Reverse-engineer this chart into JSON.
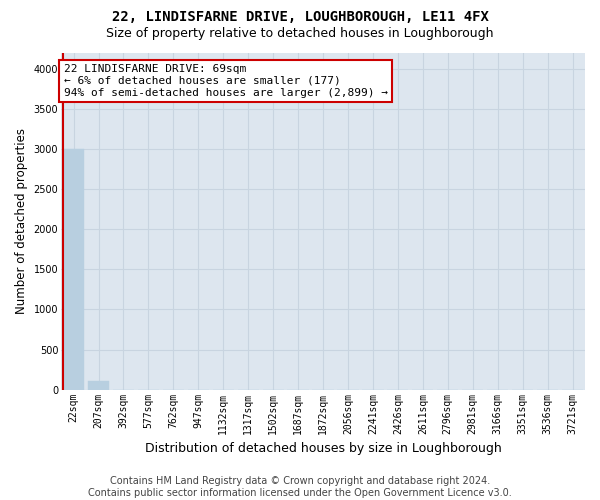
{
  "title": "22, LINDISFARNE DRIVE, LOUGHBOROUGH, LE11 4FX",
  "subtitle": "Size of property relative to detached houses in Loughborough",
  "xlabel": "Distribution of detached houses by size in Loughborough",
  "ylabel": "Number of detached properties",
  "footer_line1": "Contains HM Land Registry data © Crown copyright and database right 2024.",
  "footer_line2": "Contains public sector information licensed under the Open Government Licence v3.0.",
  "categories": [
    "22sqm",
    "207sqm",
    "392sqm",
    "577sqm",
    "762sqm",
    "947sqm",
    "1132sqm",
    "1317sqm",
    "1502sqm",
    "1687sqm",
    "1872sqm",
    "2056sqm",
    "2241sqm",
    "2426sqm",
    "2611sqm",
    "2796sqm",
    "2981sqm",
    "3166sqm",
    "3351sqm",
    "3536sqm",
    "3721sqm"
  ],
  "values": [
    3000,
    115,
    2,
    0,
    0,
    0,
    0,
    0,
    0,
    0,
    0,
    0,
    0,
    0,
    0,
    0,
    0,
    0,
    0,
    0,
    0
  ],
  "bar_color": "#b8cfe0",
  "bar_edge_color": "#b8cfe0",
  "ylim": [
    0,
    4200
  ],
  "yticks": [
    0,
    500,
    1000,
    1500,
    2000,
    2500,
    3000,
    3500,
    4000
  ],
  "grid_color": "#c8d4e0",
  "background_color": "#dde6ef",
  "annotation_line1": "22 LINDISFARNE DRIVE: 69sqm",
  "annotation_line2": "← 6% of detached houses are smaller (177)",
  "annotation_line3": "94% of semi-detached houses are larger (2,899) →",
  "annotation_box_color": "#ffffff",
  "annotation_box_edge": "#cc0000",
  "property_bar_color": "#cc0000",
  "property_bar_index": 0,
  "title_fontsize": 10,
  "subtitle_fontsize": 9,
  "tick_fontsize": 7,
  "ylabel_fontsize": 8.5,
  "xlabel_fontsize": 9,
  "annotation_fontsize": 8,
  "footer_fontsize": 7
}
